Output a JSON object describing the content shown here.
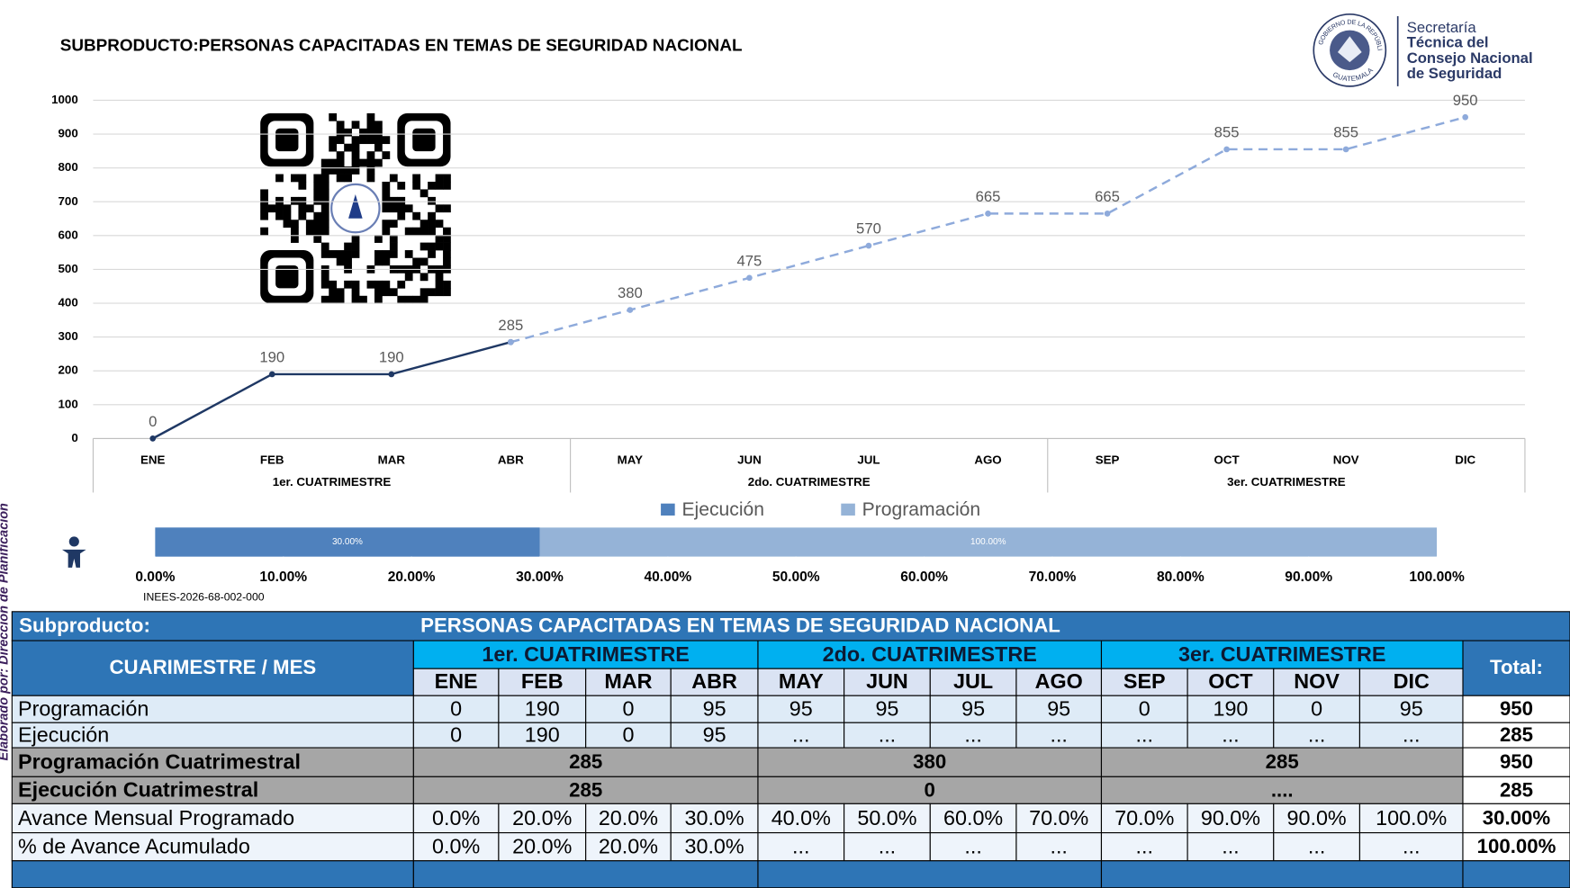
{
  "side_note": "Elaborado por: Dirección de Planificación",
  "logo": {
    "seal_top": "GOBIERNO DE LA REPÚBLICA",
    "seal_bottom": "GUATEMALA",
    "lines": [
      "Secretaría",
      "Técnica del",
      "Consejo Nacional",
      "de Seguridad"
    ]
  },
  "chart_data": [
    {
      "type": "line",
      "title": "SUBPRODUCTO:PERSONAS CAPACITADAS EN TEMAS DE SEGURIDAD NACIONAL",
      "categories": [
        "ENE",
        "FEB",
        "MAR",
        "ABR",
        "MAY",
        "JUN",
        "JUL",
        "AGO",
        "SEP",
        "OCT",
        "NOV",
        "DIC"
      ],
      "groups": [
        "1er. CUATRIMESTRE",
        "2do. CUATRIMESTRE",
        "3er. CUATRIMESTRE"
      ],
      "series": [
        {
          "name": "Ejecución",
          "color": "#1f3864",
          "dashed": false,
          "values": [
            0,
            190,
            190,
            285,
            null,
            null,
            null,
            null,
            null,
            null,
            null,
            null
          ]
        },
        {
          "name": "Programación",
          "color": "#8eaadb",
          "dashed": true,
          "values": [
            null,
            null,
            null,
            285,
            380,
            475,
            570,
            665,
            665,
            855,
            855,
            950
          ]
        }
      ],
      "ylim": [
        0,
        1000
      ],
      "yticks": [
        0,
        100,
        200,
        300,
        400,
        500,
        600,
        700,
        800,
        900,
        1000
      ],
      "grid": true
    },
    {
      "type": "progress",
      "series": [
        {
          "name": "Ejecución",
          "color": "#4f81bd",
          "values": [
            30
          ],
          "value_labels": [
            "30.00%"
          ]
        },
        {
          "name": "Programación",
          "color": "#95b3d7",
          "values": [
            100
          ],
          "value_labels": [
            "100.00%"
          ]
        }
      ],
      "xlim": [
        0,
        100
      ],
      "xticks": [
        {
          "value": 0,
          "label": "0.00%"
        },
        {
          "value": 10,
          "label": "10.00%"
        },
        {
          "value": 20,
          "label": "20.00%"
        },
        {
          "value": 30,
          "label": "30.00%"
        },
        {
          "value": 40,
          "label": "40.00%"
        },
        {
          "value": 50,
          "label": "50.00%"
        },
        {
          "value": 60,
          "label": "60.00%"
        },
        {
          "value": 70,
          "label": "70.00%"
        },
        {
          "value": 80,
          "label": "80.00%"
        },
        {
          "value": 90,
          "label": "90.00%"
        },
        {
          "value": 100,
          "label": "100.00%"
        }
      ],
      "legend": "top",
      "code": "INEES-2026-68-002-000"
    }
  ],
  "table": {
    "subproduct_label": "Subproducto:",
    "subproduct": "PERSONAS CAPACITADAS EN TEMAS DE SEGURIDAD NACIONAL",
    "corner": "CUARIMESTRE / MES",
    "groups": [
      "1er. CUATRIMESTRE",
      "2do. CUATRIMESTRE",
      "3er. CUATRIMESTRE"
    ],
    "months": [
      "ENE",
      "FEB",
      "MAR",
      "ABR",
      "MAY",
      "JUN",
      "JUL",
      "AGO",
      "SEP",
      "OCT",
      "NOV",
      "DIC"
    ],
    "total_header": "Total:",
    "rows": [
      {
        "label": "Programación",
        "cells": [
          "0",
          "190",
          "0",
          "95",
          "95",
          "95",
          "95",
          "95",
          "0",
          "190",
          "0",
          "95"
        ],
        "total": "950"
      },
      {
        "label": "Ejecución",
        "cells": [
          "0",
          "190",
          "0",
          "95",
          "...",
          "...",
          "...",
          "...",
          "...",
          "...",
          "...",
          "..."
        ],
        "total": "285"
      },
      {
        "label": "Programación Cuatrimestral",
        "cells": [
          "285",
          "380",
          "285"
        ],
        "total": "950"
      },
      {
        "label": "Ejecución Cuatrimestral",
        "cells": [
          "285",
          "0",
          "...."
        ],
        "total": "285"
      },
      {
        "label": "Avance Mensual Programado",
        "cells": [
          "0.0%",
          "20.0%",
          "20.0%",
          "30.0%",
          "40.0%",
          "50.0%",
          "60.0%",
          "70.0%",
          "70.0%",
          "90.0%",
          "90.0%",
          "100.0%"
        ],
        "total": "30.00%"
      },
      {
        "label": "% de Avance Acumulado",
        "cells": [
          "0.0%",
          "20.0%",
          "20.0%",
          "30.0%",
          "...",
          "...",
          "...",
          "...",
          "...",
          "...",
          "...",
          "..."
        ],
        "total": "100.00%"
      }
    ]
  }
}
